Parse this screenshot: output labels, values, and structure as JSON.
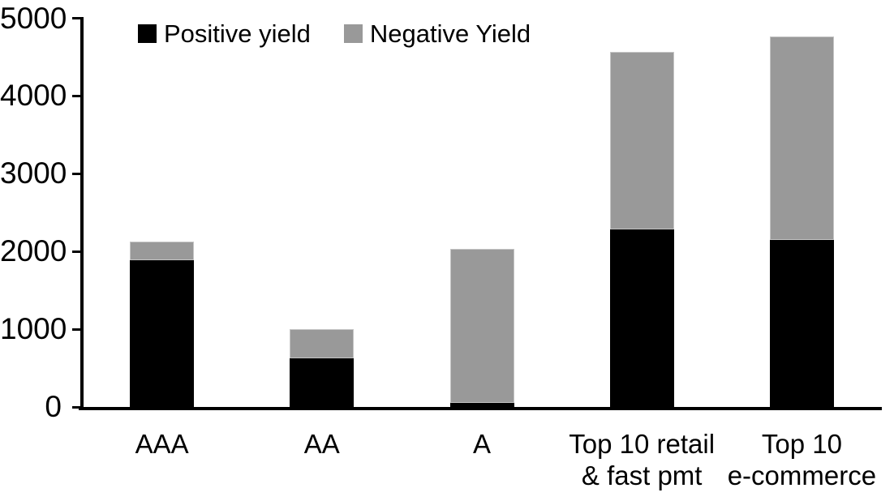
{
  "chart_data": {
    "type": "bar",
    "stacked": true,
    "title": "",
    "xlabel": "",
    "ylabel": "",
    "categories": [
      "AAA",
      "AA",
      "A",
      "Top 10 retail\n& fast pmt",
      "Top 10\ne-commerce"
    ],
    "series": [
      {
        "name": "Positive yield",
        "color": "#000000",
        "values": [
          1890,
          630,
          50,
          2280,
          2150
        ]
      },
      {
        "name": "Negative Yield",
        "color": "#999999",
        "values": [
          240,
          370,
          1980,
          2290,
          2620
        ]
      }
    ],
    "stack_totals": [
      2130,
      1000,
      2030,
      4570,
      4770
    ],
    "ylim": [
      0,
      5000
    ],
    "yticks": [
      0,
      1000,
      2000,
      3000,
      4000,
      5000
    ],
    "legend_position": "top",
    "grid": false,
    "axis_color": "#000000",
    "background": "#ffffff"
  }
}
